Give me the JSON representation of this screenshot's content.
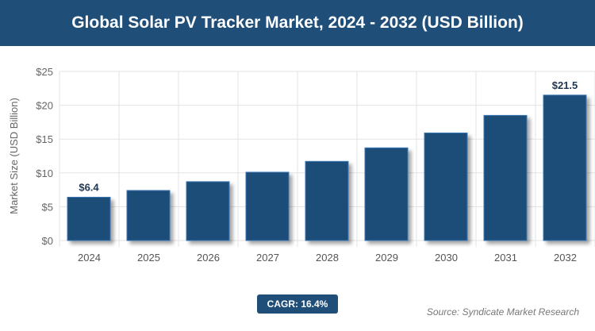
{
  "chart_data": {
    "type": "bar",
    "title": "Global Solar PV Tracker Market, 2024 - 2032 (USD Billion)",
    "ylabel": "Market Size (USD Billion)",
    "xlabel": "",
    "categories": [
      "2024",
      "2025",
      "2026",
      "2027",
      "2028",
      "2029",
      "2030",
      "2031",
      "2032"
    ],
    "values": [
      6.4,
      7.4,
      8.7,
      10.1,
      11.7,
      13.7,
      15.9,
      18.5,
      21.5
    ],
    "data_labels": {
      "0": "$6.4",
      "8": "$21.5"
    },
    "ylim": [
      0,
      25
    ],
    "yticks": [
      "$0",
      "$5",
      "$10",
      "$15",
      "$20",
      "$25"
    ],
    "grid": true,
    "bar_color": "#1f4e79"
  },
  "cagr": "CAGR: 16.4%",
  "source": "Source: Syndicate Market Research"
}
